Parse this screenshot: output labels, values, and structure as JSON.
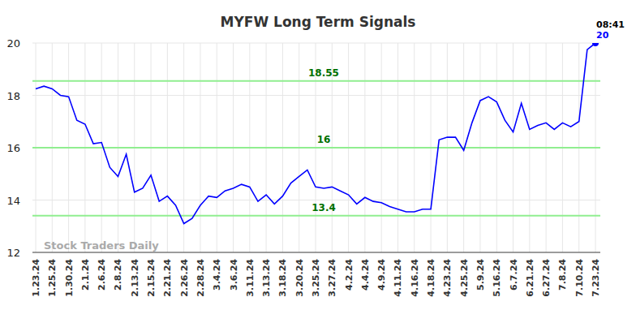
{
  "chart_data": {
    "type": "line",
    "title": "MYFW Long Term Signals",
    "categories": [
      "1.23.24",
      null,
      "1.25.24",
      null,
      "1.30.24",
      null,
      "2.1.24",
      null,
      "2.6.24",
      null,
      "2.8.24",
      null,
      "2.13.24",
      null,
      "2.15.24",
      null,
      "2.21.24",
      null,
      "2.26.24",
      null,
      "2.28.24",
      null,
      "3.4.24",
      null,
      "3.6.24",
      null,
      "3.11.24",
      null,
      "3.13.24",
      null,
      "3.18.24",
      null,
      "3.20.24",
      null,
      "3.25.24",
      null,
      "3.27.24",
      null,
      "4.2.24",
      null,
      "4.4.24",
      null,
      "4.9.24",
      null,
      "4.11.24",
      null,
      "4.16.24",
      null,
      "4.18.24",
      null,
      "4.23.24",
      null,
      "4.25.24",
      null,
      "5.9.24",
      null,
      "5.16.24",
      null,
      "6.7.24",
      null,
      "6.21.24",
      null,
      "6.27.24",
      null,
      "7.8.24",
      null,
      "7.10.24",
      null,
      "7.23.24"
    ],
    "values": [
      18.25,
      18.35,
      18.25,
      18.0,
      17.95,
      17.05,
      16.9,
      16.15,
      16.2,
      15.25,
      14.9,
      15.75,
      14.3,
      14.45,
      14.95,
      13.95,
      14.15,
      13.8,
      13.1,
      13.3,
      13.8,
      14.15,
      14.1,
      14.35,
      14.45,
      14.6,
      14.5,
      13.95,
      14.2,
      13.85,
      14.15,
      14.65,
      14.9,
      15.15,
      14.5,
      14.45,
      14.5,
      14.35,
      14.2,
      13.85,
      14.1,
      13.95,
      13.9,
      13.75,
      13.65,
      13.55,
      13.55,
      13.65,
      13.65,
      16.3,
      16.4,
      16.4,
      15.9,
      16.95,
      17.8,
      17.95,
      17.75,
      17.05,
      16.6,
      17.7,
      16.7,
      16.85,
      16.95,
      16.7,
      16.95,
      16.8,
      17.0,
      19.75,
      20.0
    ],
    "color": "#0000ff",
    "ylim": [
      12,
      20
    ],
    "yticks": [
      12,
      14,
      16,
      18,
      20
    ],
    "grid": true,
    "reference_lines": [
      18.55,
      16,
      13.4
    ],
    "last_point_time": "08:41",
    "watermark": "Stock Traders Daily"
  }
}
